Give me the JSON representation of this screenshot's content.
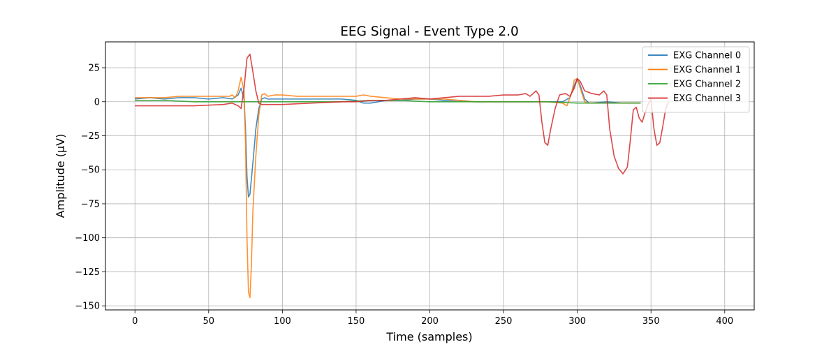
{
  "chart_data": {
    "type": "line",
    "title": "EEG Signal - Event Type 2.0",
    "xlabel": "Time (samples)",
    "ylabel": "Amplitude (μV)",
    "xlim": [
      -20,
      420
    ],
    "ylim": [
      -153,
      44
    ],
    "xticks": [
      0,
      50,
      100,
      150,
      200,
      250,
      300,
      350,
      400
    ],
    "yticks": [
      -150,
      -125,
      -100,
      -75,
      -50,
      -25,
      0,
      25
    ],
    "ytick_labels": [
      "−150",
      "−125",
      "−100",
      "−75",
      "−50",
      "−25",
      "0",
      "25"
    ],
    "grid": true,
    "legend_position": "top-right",
    "series": [
      {
        "name": "EXG Channel 0",
        "color": "#1f77b4",
        "points": [
          [
            0,
            2
          ],
          [
            10,
            3
          ],
          [
            20,
            2
          ],
          [
            30,
            3
          ],
          [
            40,
            3
          ],
          [
            50,
            2
          ],
          [
            60,
            3
          ],
          [
            66,
            2
          ],
          [
            70,
            5
          ],
          [
            72,
            10
          ],
          [
            74,
            2
          ],
          [
            75,
            -20
          ],
          [
            76,
            -55
          ],
          [
            77,
            -70
          ],
          [
            78,
            -68
          ],
          [
            80,
            -45
          ],
          [
            82,
            -20
          ],
          [
            84,
            -5
          ],
          [
            86,
            2
          ],
          [
            88,
            3
          ],
          [
            90,
            2
          ],
          [
            95,
            2
          ],
          [
            100,
            2
          ],
          [
            110,
            2
          ],
          [
            120,
            2
          ],
          [
            130,
            2
          ],
          [
            140,
            2
          ],
          [
            150,
            1
          ],
          [
            155,
            -1
          ],
          [
            160,
            -1
          ],
          [
            170,
            1
          ],
          [
            180,
            1
          ],
          [
            190,
            2
          ],
          [
            200,
            2
          ],
          [
            210,
            1
          ],
          [
            220,
            1
          ],
          [
            230,
            0
          ],
          [
            240,
            0
          ],
          [
            250,
            0
          ],
          [
            260,
            0
          ],
          [
            270,
            0
          ],
          [
            280,
            0
          ],
          [
            290,
            0
          ],
          [
            295,
            3
          ],
          [
            298,
            12
          ],
          [
            300,
            17
          ],
          [
            302,
            12
          ],
          [
            305,
            2
          ],
          [
            308,
            -1
          ],
          [
            310,
            -1
          ],
          [
            320,
            0
          ],
          [
            330,
            -1
          ],
          [
            340,
            -1
          ],
          [
            343,
            -1
          ]
        ]
      },
      {
        "name": "EXG Channel 1",
        "color": "#ff7f0e",
        "points": [
          [
            0,
            3
          ],
          [
            10,
            3
          ],
          [
            20,
            3
          ],
          [
            30,
            4
          ],
          [
            40,
            4
          ],
          [
            50,
            4
          ],
          [
            60,
            4
          ],
          [
            64,
            4
          ],
          [
            66,
            5
          ],
          [
            68,
            3
          ],
          [
            70,
            8
          ],
          [
            72,
            18
          ],
          [
            74,
            8
          ],
          [
            75,
            -30
          ],
          [
            76,
            -100
          ],
          [
            77,
            -140
          ],
          [
            78,
            -144
          ],
          [
            79,
            -120
          ],
          [
            80,
            -80
          ],
          [
            82,
            -40
          ],
          [
            84,
            -10
          ],
          [
            86,
            5
          ],
          [
            88,
            6
          ],
          [
            90,
            4
          ],
          [
            95,
            5
          ],
          [
            100,
            5
          ],
          [
            110,
            4
          ],
          [
            120,
            4
          ],
          [
            130,
            4
          ],
          [
            140,
            4
          ],
          [
            150,
            4
          ],
          [
            155,
            5
          ],
          [
            160,
            4
          ],
          [
            170,
            3
          ],
          [
            180,
            2
          ],
          [
            190,
            2
          ],
          [
            200,
            2
          ],
          [
            210,
            2
          ],
          [
            220,
            1
          ],
          [
            230,
            0
          ],
          [
            240,
            0
          ],
          [
            250,
            0
          ],
          [
            260,
            0
          ],
          [
            270,
            0
          ],
          [
            280,
            0
          ],
          [
            290,
            -1
          ],
          [
            293,
            -3
          ],
          [
            296,
            6
          ],
          [
            298,
            16
          ],
          [
            300,
            17
          ],
          [
            302,
            10
          ],
          [
            305,
            0
          ],
          [
            308,
            -1
          ],
          [
            310,
            -1
          ],
          [
            320,
            -1
          ],
          [
            330,
            -1
          ],
          [
            340,
            -1
          ],
          [
            343,
            -1
          ]
        ]
      },
      {
        "name": "EXG Channel 2",
        "color": "#2ca02c",
        "points": [
          [
            0,
            1
          ],
          [
            20,
            1
          ],
          [
            40,
            0
          ],
          [
            60,
            0
          ],
          [
            80,
            0
          ],
          [
            100,
            0
          ],
          [
            120,
            0
          ],
          [
            140,
            0
          ],
          [
            160,
            1
          ],
          [
            180,
            1
          ],
          [
            200,
            0
          ],
          [
            220,
            0
          ],
          [
            240,
            0
          ],
          [
            260,
            0
          ],
          [
            280,
            0
          ],
          [
            300,
            -1
          ],
          [
            320,
            -1
          ],
          [
            340,
            -1
          ],
          [
            343,
            -1
          ]
        ]
      },
      {
        "name": "EXG Channel 3",
        "color": "#d62728",
        "points": [
          [
            0,
            -3
          ],
          [
            20,
            -3
          ],
          [
            40,
            -3
          ],
          [
            60,
            -2
          ],
          [
            66,
            -1
          ],
          [
            70,
            -3
          ],
          [
            72,
            -5
          ],
          [
            74,
            10
          ],
          [
            76,
            32
          ],
          [
            78,
            35
          ],
          [
            80,
            22
          ],
          [
            82,
            8
          ],
          [
            84,
            -1
          ],
          [
            86,
            -2
          ],
          [
            90,
            -2
          ],
          [
            100,
            -2
          ],
          [
            120,
            -1
          ],
          [
            140,
            0
          ],
          [
            150,
            0
          ],
          [
            160,
            1
          ],
          [
            170,
            1
          ],
          [
            180,
            2
          ],
          [
            190,
            3
          ],
          [
            200,
            2
          ],
          [
            210,
            3
          ],
          [
            220,
            4
          ],
          [
            230,
            4
          ],
          [
            240,
            4
          ],
          [
            250,
            5
          ],
          [
            260,
            5
          ],
          [
            265,
            6
          ],
          [
            268,
            4
          ],
          [
            272,
            8
          ],
          [
            274,
            5
          ],
          [
            276,
            -15
          ],
          [
            278,
            -30
          ],
          [
            280,
            -32
          ],
          [
            282,
            -20
          ],
          [
            285,
            -5
          ],
          [
            288,
            5
          ],
          [
            292,
            6
          ],
          [
            295,
            4
          ],
          [
            298,
            10
          ],
          [
            300,
            17
          ],
          [
            302,
            15
          ],
          [
            305,
            8
          ],
          [
            310,
            6
          ],
          [
            315,
            5
          ],
          [
            318,
            8
          ],
          [
            320,
            5
          ],
          [
            322,
            -20
          ],
          [
            325,
            -40
          ],
          [
            328,
            -49
          ],
          [
            331,
            -53
          ],
          [
            334,
            -48
          ],
          [
            336,
            -28
          ],
          [
            338,
            -6
          ],
          [
            340,
            -4
          ],
          [
            342,
            -12
          ],
          [
            344,
            -15
          ],
          [
            346,
            -8
          ],
          [
            348,
            -2
          ],
          [
            350,
            2
          ],
          [
            352,
            -20
          ],
          [
            354,
            -32
          ],
          [
            356,
            -30
          ],
          [
            358,
            -18
          ],
          [
            360,
            -5
          ],
          [
            362,
            0
          ]
        ]
      }
    ]
  }
}
